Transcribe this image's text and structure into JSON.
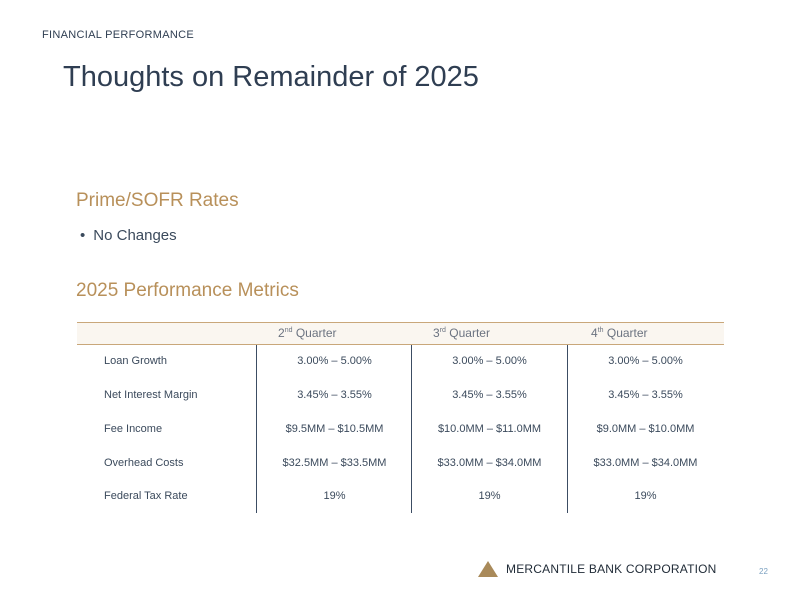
{
  "header": {
    "section": "FINANCIAL PERFORMANCE",
    "title": "Thoughts on Remainder of 2025"
  },
  "rates": {
    "heading": "Prime/SOFR Rates",
    "bullets": [
      "No Changes"
    ]
  },
  "metrics": {
    "heading": "2025 Performance Metrics",
    "columns": [
      {
        "num": "2",
        "suffix": "nd",
        "label": "Quarter"
      },
      {
        "num": "3",
        "suffix": "rd",
        "label": "Quarter"
      },
      {
        "num": "4",
        "suffix": "th",
        "label": "Quarter"
      }
    ],
    "rows": [
      {
        "label": "Loan Growth",
        "values": [
          "3.00% – 5.00%",
          "3.00% – 5.00%",
          "3.00% – 5.00%"
        ]
      },
      {
        "label": "Net Interest Margin",
        "values": [
          "3.45% – 3.55%",
          "3.45% – 3.55%",
          "3.45% – 3.55%"
        ]
      },
      {
        "label": "Fee Income",
        "values": [
          "$9.5MM – $10.5MM",
          "$10.0MM – $11.0MM",
          "$9.0MM – $10.0MM"
        ]
      },
      {
        "label": "Overhead Costs",
        "values": [
          "$32.5MM – $33.5MM",
          "$33.0MM – $34.0MM",
          "$33.0MM – $34.0MM"
        ]
      },
      {
        "label": "Federal Tax Rate",
        "values": [
          "19%",
          "19%",
          "19%"
        ]
      }
    ]
  },
  "footer": {
    "company": "MERCANTILE BANK CORPORATION",
    "page_number": "22",
    "logo_icon": "triangle-logo-icon"
  },
  "colors": {
    "accent": "#b8905a",
    "title": "#2f3e52",
    "rule": "#c9a77a"
  }
}
